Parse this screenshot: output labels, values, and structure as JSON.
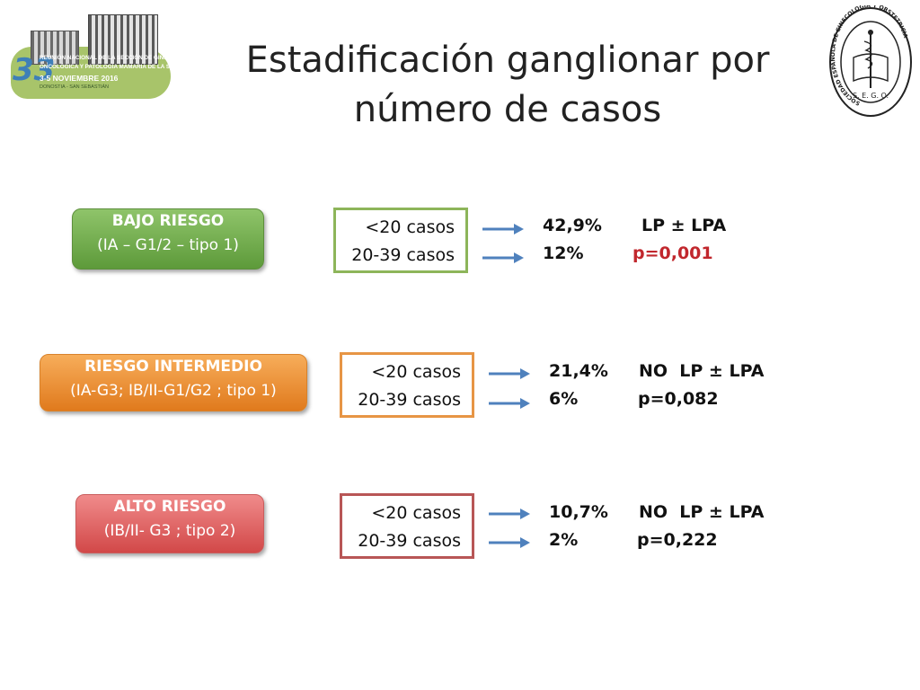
{
  "title": "Estadificación ganglionar por número de casos",
  "logo_left": {
    "number": "33",
    "line1": "REUNIÓN NACIONAL DE LA SECCIÓN DE GINECOLOGÍA",
    "line2": "ONCOLÓGICA Y PATOLOGÍA MAMARIA DE LA SEGO",
    "line3": "3-5 NOVIEMBRE 2016",
    "line4": "DONOSTIA - SAN SEBASTIÁN"
  },
  "seal": {
    "ring_text": "SOCIEDAD ESPAÑOLA DE GINECOLOGÍA Y OBSTETRICIA",
    "initials": "S. E. G. O."
  },
  "rows": [
    {
      "risk_name": "BAJO RIESGO",
      "risk_desc": "(IA – G1/2 – tipo 1)",
      "case1": "<20 casos",
      "case2": "20-39 casos",
      "pct1": "42,9%",
      "pct2": "12%",
      "label": "LP ± LPA",
      "p": "p=0,001"
    },
    {
      "risk_name": "RIESGO INTERMEDIO",
      "risk_desc": "(IA-G3; IB/II-G1/G2 ; tipo 1)",
      "case1": "<20 casos",
      "case2": "20-39 casos",
      "pct1": "21,4%",
      "pct2": "6%",
      "label": "NO  LP ± LPA",
      "p": "p=0,082"
    },
    {
      "risk_name": "ALTO RIESGO",
      "risk_desc": "(IB/II- G3 ; tipo 2)",
      "case1": "<20 casos",
      "case2": "20-39 casos",
      "pct1": "10,7%",
      "pct2": "2%",
      "label": "NO  LP ± LPA",
      "p": "p=0,222"
    }
  ],
  "colors": {
    "low": "#6aa84f",
    "intermediate": "#e69138",
    "high": "#e06666",
    "arrow": "#4f81bd",
    "significant_p": "#c1272d"
  }
}
